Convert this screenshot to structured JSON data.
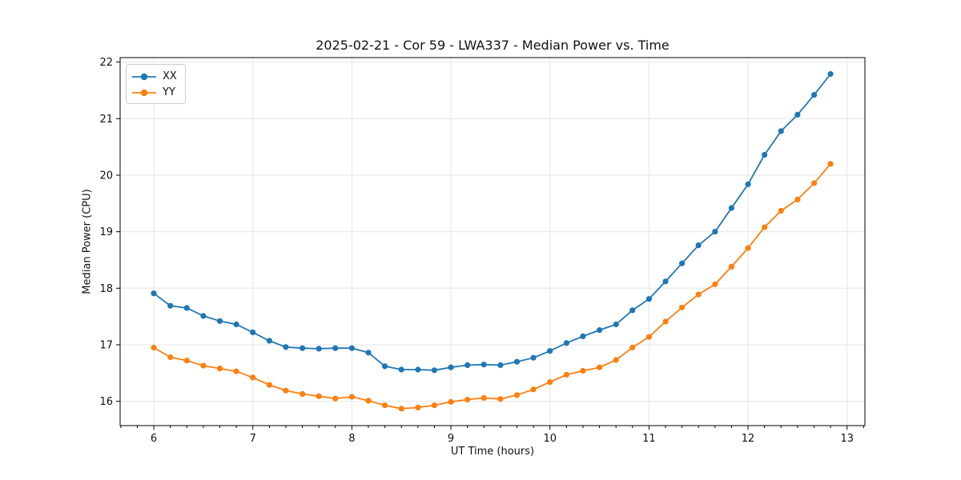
{
  "chart_data": {
    "type": "line",
    "title": "2025-02-21 - Cor 59 - LWA337 - Median Power vs. Time",
    "xlabel": "UT Time (hours)",
    "ylabel": "Median Power (CPU)",
    "xlim": [
      5.66,
      13.18
    ],
    "ylim": [
      15.57,
      22.08
    ],
    "xticks": [
      6,
      7,
      8,
      9,
      10,
      11,
      12,
      13
    ],
    "yticks": [
      16,
      17,
      18,
      19,
      20,
      21,
      22
    ],
    "x_minor_tick_step_hours": 0.1667,
    "grid": true,
    "grid_color": "#e6e6e6",
    "spine_color": "#000000",
    "text_color": "#111111",
    "legend_position": "upper left",
    "marker": "circle",
    "x": [
      6.0,
      6.167,
      6.333,
      6.5,
      6.667,
      6.833,
      7.0,
      7.167,
      7.333,
      7.5,
      7.667,
      7.833,
      8.0,
      8.167,
      8.333,
      8.5,
      8.667,
      8.833,
      9.0,
      9.167,
      9.333,
      9.5,
      9.667,
      9.833,
      10.0,
      10.167,
      10.333,
      10.5,
      10.667,
      10.833,
      11.0,
      11.167,
      11.333,
      11.5,
      11.667,
      11.833,
      12.0,
      12.167,
      12.333,
      12.5,
      12.667,
      12.833
    ],
    "series": [
      {
        "name": "XX",
        "color": "#1f77b4",
        "values": [
          17.91,
          17.69,
          17.65,
          17.51,
          17.42,
          17.36,
          17.22,
          17.07,
          16.96,
          16.94,
          16.93,
          16.94,
          16.94,
          16.86,
          16.62,
          16.56,
          16.56,
          16.55,
          16.6,
          16.64,
          16.65,
          16.64,
          16.7,
          16.77,
          16.89,
          17.03,
          17.15,
          17.26,
          17.36,
          17.61,
          17.81,
          18.12,
          18.44,
          18.76,
          19.0,
          19.42,
          19.84,
          20.36,
          20.78,
          21.07,
          21.42,
          21.79
        ]
      },
      {
        "name": "YY",
        "color": "#ff7f0e",
        "values": [
          16.95,
          16.78,
          16.72,
          16.63,
          16.58,
          16.53,
          16.42,
          16.29,
          16.19,
          16.13,
          16.09,
          16.05,
          16.08,
          16.01,
          15.93,
          15.87,
          15.89,
          15.93,
          15.99,
          16.03,
          16.06,
          16.04,
          16.11,
          16.21,
          16.34,
          16.47,
          16.54,
          16.6,
          16.73,
          16.95,
          17.14,
          17.41,
          17.66,
          17.89,
          18.07,
          18.38,
          18.71,
          19.08,
          19.37,
          19.57,
          19.86,
          20.2
        ]
      }
    ]
  }
}
